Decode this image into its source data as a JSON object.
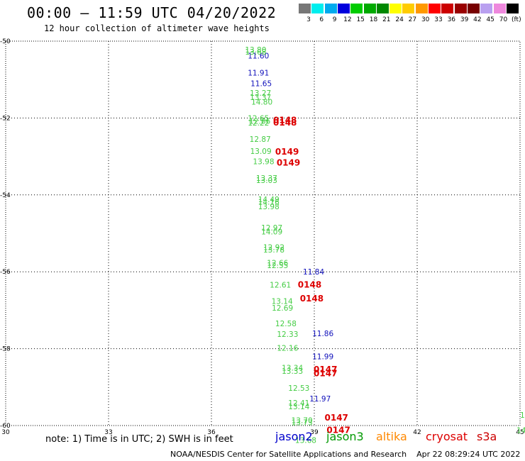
{
  "header": {
    "title": "00:00 – 11:59 UTC 04/20/2022",
    "subtitle": "12 hour collection of altimeter wave heights"
  },
  "colorbar": {
    "labels": [
      "3",
      "6",
      "9",
      "12",
      "15",
      "18",
      "21",
      "24",
      "27",
      "30",
      "33",
      "36",
      "39",
      "42",
      "45",
      "70",
      "(ft)"
    ],
    "colors": [
      "#777777",
      "#00eeee",
      "#00aaee",
      "#0000dd",
      "#00cc00",
      "#00aa00",
      "#008800",
      "#ffff00",
      "#ffcc00",
      "#ff9900",
      "#ff0000",
      "#cc0000",
      "#990000",
      "#770000",
      "#b9a0f0",
      "#ee88dd",
      "#000000"
    ]
  },
  "footer": {
    "note": "note: 1) Time is in UTC; 2) SWH is in feet",
    "satellites": [
      {
        "name": "jason2",
        "color": "#0000cc"
      },
      {
        "name": "jason3",
        "color": "#009900"
      },
      {
        "name": "altika",
        "color": "#ff8800"
      },
      {
        "name": "cryosat",
        "color": "#dd0000"
      },
      {
        "name": "s3a",
        "color": "#cc0000"
      }
    ],
    "credit": "NOAA/NESDIS Center for Satellite Applications and Research    Apr 22 08:29:24 UTC 2022"
  },
  "chart_data": {
    "type": "scatter",
    "title": "00:00 – 11:59 UTC 04/20/2022",
    "xlim": [
      30,
      45
    ],
    "ylim": [
      -60,
      -50
    ],
    "x_ticks": [
      "30",
      "33",
      "36",
      "39",
      "42",
      "45"
    ],
    "y_ticks": [
      "-50",
      "-52",
      "-54",
      "-56",
      "-58",
      "-60"
    ],
    "grid": true,
    "series": [
      {
        "name": "jason2",
        "color": "#1111bb",
        "points": [
          {
            "x": 37.06,
            "y": -50.38,
            "label": "11.60"
          },
          {
            "x": 37.06,
            "y": -50.82,
            "label": "11.91"
          },
          {
            "x": 37.14,
            "y": -51.1,
            "label": "11.65"
          },
          {
            "x": 38.67,
            "y": -56.0,
            "label": "11.84"
          },
          {
            "x": 38.94,
            "y": -57.6,
            "label": "11.86"
          },
          {
            "x": 38.94,
            "y": -58.2,
            "label": "11.99"
          },
          {
            "x": 38.86,
            "y": -59.3,
            "label": "11.97"
          }
        ]
      },
      {
        "name": "jason3",
        "color": "#44cc44",
        "points": [
          {
            "x": 36.98,
            "y": -50.22,
            "label": "13.80"
          },
          {
            "x": 36.98,
            "y": -50.28,
            "label": "13.68"
          },
          {
            "x": 37.12,
            "y": -51.35,
            "label": "13.27"
          },
          {
            "x": 37.12,
            "y": -51.46,
            "label": "13.37"
          },
          {
            "x": 37.16,
            "y": -51.58,
            "label": "14.80"
          },
          {
            "x": 37.06,
            "y": -52.0,
            "label": "12.65"
          },
          {
            "x": 37.1,
            "y": -52.08,
            "label": "12.86"
          },
          {
            "x": 37.06,
            "y": -52.12,
            "label": "12.22"
          },
          {
            "x": 37.11,
            "y": -52.55,
            "label": "12.87"
          },
          {
            "x": 37.13,
            "y": -52.86,
            "label": "13.09"
          },
          {
            "x": 37.21,
            "y": -53.13,
            "label": "13.98"
          },
          {
            "x": 37.3,
            "y": -53.56,
            "label": "13.37"
          },
          {
            "x": 37.3,
            "y": -53.62,
            "label": "13.03"
          },
          {
            "x": 37.36,
            "y": -54.11,
            "label": "14.49"
          },
          {
            "x": 37.36,
            "y": -54.18,
            "label": "14.16"
          },
          {
            "x": 37.36,
            "y": -54.3,
            "label": "13.98"
          },
          {
            "x": 37.45,
            "y": -54.85,
            "label": "12.97"
          },
          {
            "x": 37.45,
            "y": -54.95,
            "label": "14.09"
          },
          {
            "x": 37.51,
            "y": -55.36,
            "label": "12.92"
          },
          {
            "x": 37.51,
            "y": -55.42,
            "label": "13.78"
          },
          {
            "x": 37.62,
            "y": -55.77,
            "label": "12.66"
          },
          {
            "x": 37.62,
            "y": -55.83,
            "label": "12.55"
          },
          {
            "x": 37.7,
            "y": -56.34,
            "label": "12.61"
          },
          {
            "x": 37.75,
            "y": -56.76,
            "label": "13.14"
          },
          {
            "x": 37.76,
            "y": -56.94,
            "label": "12.69"
          },
          {
            "x": 37.86,
            "y": -57.34,
            "label": "12.58"
          },
          {
            "x": 37.91,
            "y": -57.62,
            "label": "12.33"
          },
          {
            "x": 37.91,
            "y": -57.98,
            "label": "12.16"
          },
          {
            "x": 38.05,
            "y": -58.5,
            "label": "13.34"
          },
          {
            "x": 38.05,
            "y": -58.58,
            "label": "13.33"
          },
          {
            "x": 38.24,
            "y": -59.02,
            "label": "12.53"
          },
          {
            "x": 38.24,
            "y": -59.41,
            "label": "12.41"
          },
          {
            "x": 38.24,
            "y": -59.5,
            "label": "13.14"
          },
          {
            "x": 38.33,
            "y": -59.86,
            "label": "13.70"
          },
          {
            "x": 38.33,
            "y": -59.92,
            "label": "13.73"
          },
          {
            "x": 38.44,
            "y": -60.38,
            "label": "13.68"
          },
          {
            "x": 45.0,
            "y": -59.72,
            "label": "1"
          },
          {
            "x": 44.9,
            "y": -60.12,
            "label": "14"
          }
        ]
      },
      {
        "name": "s3a",
        "color": "#dd0000",
        "points": [
          {
            "x": 37.8,
            "y": -52.06,
            "label": "0148"
          },
          {
            "x": 37.8,
            "y": -52.12,
            "label": "0148"
          },
          {
            "x": 37.86,
            "y": -52.88,
            "label": "0149"
          },
          {
            "x": 37.9,
            "y": -53.16,
            "label": "0149"
          },
          {
            "x": 38.52,
            "y": -56.34,
            "label": "0148"
          },
          {
            "x": 38.58,
            "y": -56.7,
            "label": "0148"
          },
          {
            "x": 38.98,
            "y": -58.54,
            "label": "0147"
          },
          {
            "x": 38.98,
            "y": -58.64,
            "label": "0147"
          },
          {
            "x": 39.3,
            "y": -59.8,
            "label": "0147"
          },
          {
            "x": 39.36,
            "y": -60.12,
            "label": "0147"
          }
        ]
      }
    ]
  }
}
